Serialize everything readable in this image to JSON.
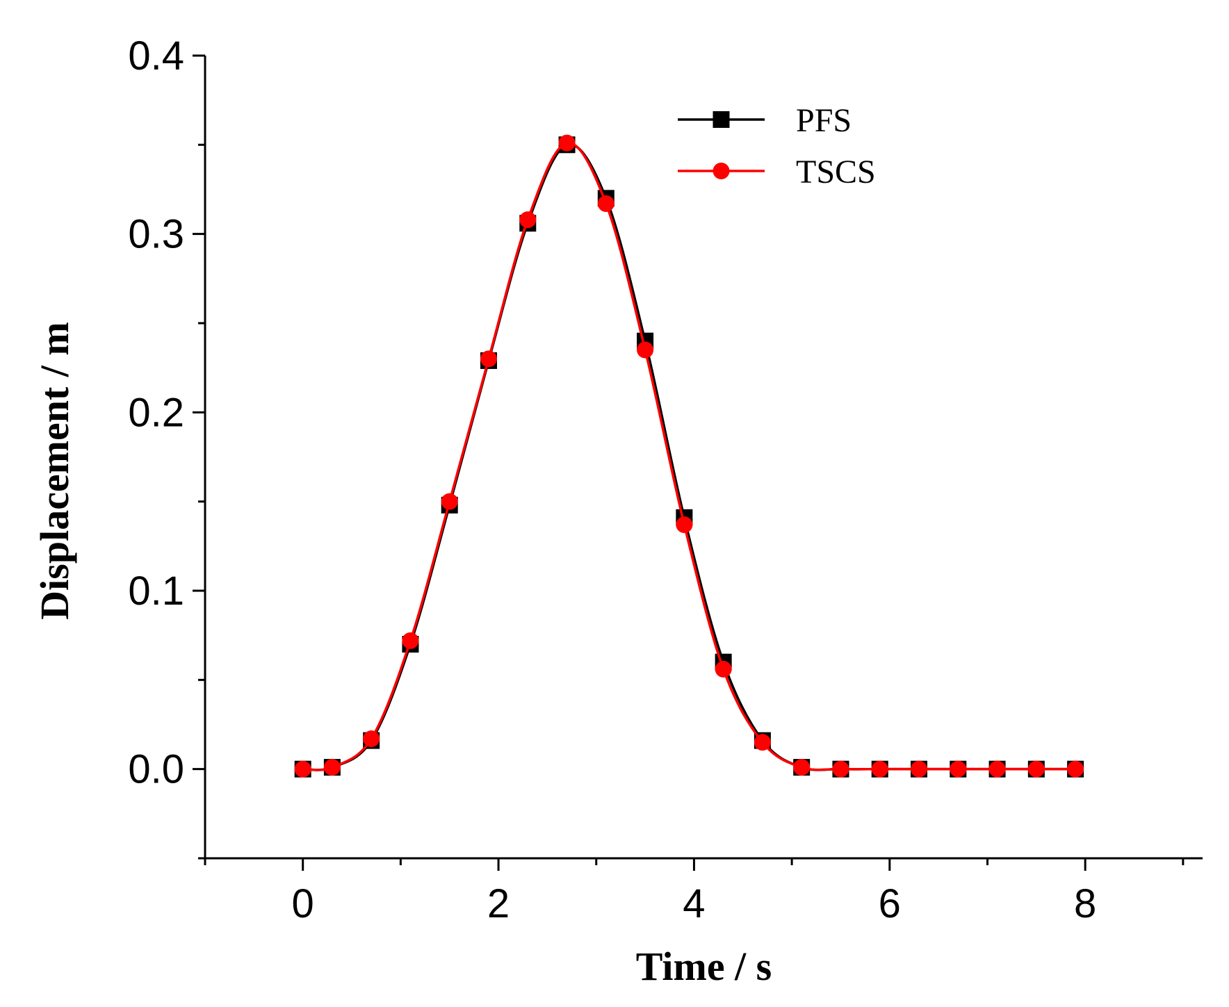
{
  "chart_data": {
    "type": "line",
    "title": "",
    "xlabel": "Time / s",
    "ylabel": "Displacement / m",
    "xlim": [
      -1,
      9.2
    ],
    "ylim": [
      -0.05,
      0.4
    ],
    "xticks": [
      0,
      2,
      4,
      6,
      8
    ],
    "xtick_labels": [
      "0",
      "2",
      "4",
      "6",
      "8"
    ],
    "yticks": [
      0.0,
      0.1,
      0.2,
      0.3,
      0.4
    ],
    "ytick_labels": [
      "0.0",
      "0.1",
      "0.2",
      "0.3",
      "0.4"
    ],
    "grid": false,
    "legend_position": "top-center",
    "series": [
      {
        "name": "PFS",
        "color": "#000000",
        "marker": "square",
        "x": [
          0,
          0.3,
          0.7,
          1.1,
          1.5,
          1.9,
          2.3,
          2.7,
          3.1,
          3.5,
          3.9,
          4.3,
          4.7,
          5.1,
          5.5,
          5.9,
          6.3,
          6.7,
          7.1,
          7.5,
          7.9
        ],
        "y": [
          0,
          0.001,
          0.016,
          0.07,
          0.148,
          0.229,
          0.306,
          0.35,
          0.32,
          0.24,
          0.141,
          0.06,
          0.016,
          0.001,
          0,
          0,
          0,
          0,
          0,
          0,
          0
        ]
      },
      {
        "name": "TSCS",
        "color": "#ff0000",
        "marker": "circle",
        "x": [
          0,
          0.3,
          0.7,
          1.1,
          1.5,
          1.9,
          2.3,
          2.7,
          3.1,
          3.5,
          3.9,
          4.3,
          4.7,
          5.1,
          5.5,
          5.9,
          6.3,
          6.7,
          7.1,
          7.5,
          7.9
        ],
        "y": [
          0,
          0.001,
          0.017,
          0.072,
          0.15,
          0.23,
          0.308,
          0.351,
          0.317,
          0.235,
          0.137,
          0.056,
          0.015,
          0.001,
          0,
          0,
          0,
          0,
          0,
          0,
          0
        ]
      }
    ]
  }
}
